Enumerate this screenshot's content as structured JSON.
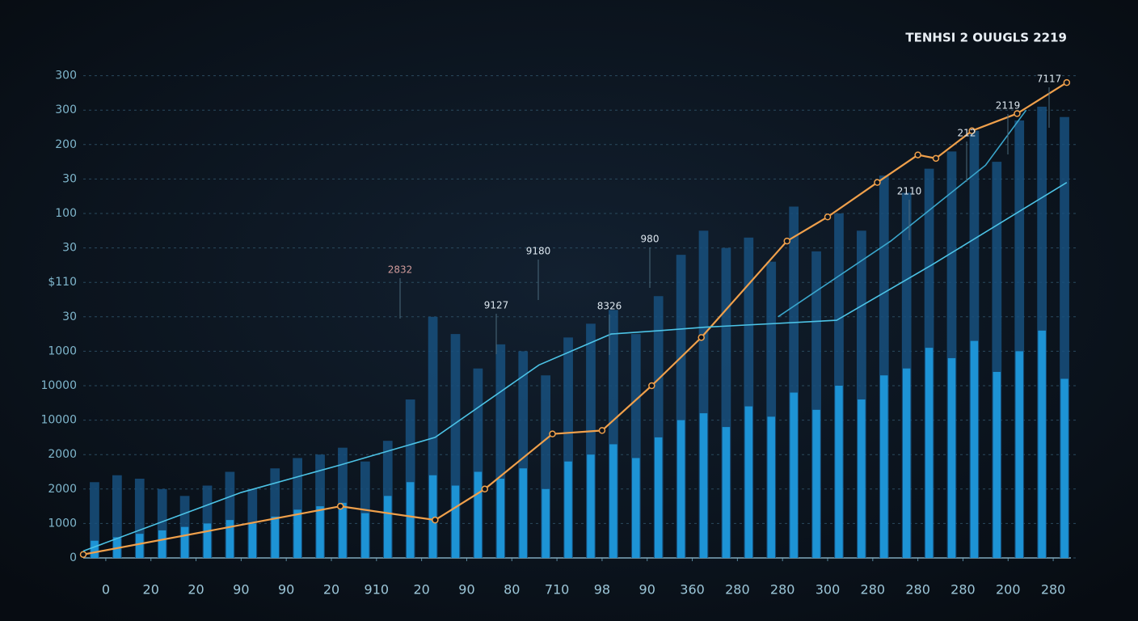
{
  "chart_data": {
    "type": "combo",
    "title": "TENHSI 2 OUUGLS 2219",
    "xlim": [
      -0.5,
      21.5
    ],
    "xticks": [
      0,
      {
        "value": 1,
        "label": "20"
      },
      {
        "value": 2,
        "label": "20"
      },
      {
        "value": 3,
        "label": "90"
      },
      {
        "value": 4,
        "label": "90"
      },
      {
        "value": 5,
        "label": "20"
      },
      {
        "value": 6,
        "label": "910"
      },
      {
        "value": 7,
        "label": "20"
      },
      {
        "value": 8,
        "label": "90"
      },
      {
        "value": 9,
        "label": "80"
      },
      {
        "value": 10,
        "label": "710"
      },
      {
        "value": 11,
        "label": "98"
      },
      {
        "value": 12,
        "label": "90"
      },
      {
        "value": 13,
        "label": "360"
      },
      {
        "value": 14,
        "label": "280"
      },
      {
        "value": 15,
        "label": "280"
      },
      {
        "value": 16,
        "label": "300"
      },
      {
        "value": 17,
        "label": "280"
      },
      {
        "value": 18,
        "label": "280"
      },
      {
        "value": 19,
        "label": "280"
      },
      {
        "value": 20,
        "label": "200"
      },
      {
        "value": 21,
        "label": "280"
      }
    ],
    "ylim": [
      0,
      14
    ],
    "yticks": [
      0,
      {
        "value": 1,
        "label": "1000"
      },
      {
        "value": 2,
        "label": "2000"
      },
      {
        "value": 3,
        "label": "2000"
      },
      {
        "value": 4,
        "label": "10000"
      },
      {
        "value": 5,
        "label": "10000"
      },
      {
        "value": 6,
        "label": "1000"
      },
      {
        "value": 7,
        "label": "30"
      },
      {
        "value": 8,
        "label": "$110"
      },
      {
        "value": 9,
        "label": "30"
      },
      {
        "value": 10,
        "label": "100"
      },
      {
        "value": 11,
        "label": "30"
      },
      {
        "value": 12,
        "label": "200"
      },
      {
        "value": 13,
        "label": "300"
      },
      {
        "value": 14,
        "label": "300"
      }
    ],
    "grid": true,
    "annotations": [
      "2832",
      "9180",
      "980",
      "9127",
      "8326",
      "2110",
      "212",
      "2119",
      "7117"
    ],
    "series": [
      {
        "type": "bar",
        "color": "#17507e",
        "x": [
          -0.25,
          0.25,
          0.75,
          1.25,
          1.75,
          2.25,
          2.75,
          3.25,
          3.75,
          4.25,
          4.75,
          5.25,
          5.75,
          6.25,
          6.75,
          7.25,
          7.75,
          8.25,
          8.75,
          9.25,
          9.75,
          10.25,
          10.75,
          11.25,
          11.75,
          12.25,
          12.75,
          13.25,
          13.75,
          14.25,
          14.75,
          15.25,
          15.75,
          16.25,
          16.75,
          17.25,
          17.75,
          18.25,
          18.75,
          19.25,
          19.75,
          20.25,
          20.75,
          21.25
        ],
        "values": [
          2.2,
          2.4,
          2.3,
          2.0,
          1.8,
          2.1,
          2.5,
          2.0,
          2.6,
          2.9,
          3.0,
          3.2,
          2.8,
          3.4,
          4.6,
          7.0,
          6.5,
          5.5,
          6.2,
          6.0,
          5.3,
          6.4,
          6.8,
          7.2,
          6.5,
          7.6,
          8.8,
          9.5,
          9.0,
          9.3,
          8.6,
          10.2,
          8.9,
          10.0,
          9.5,
          11.1,
          10.6,
          11.3,
          11.8,
          12.4,
          11.5,
          12.7,
          13.1,
          12.8
        ]
      },
      {
        "type": "bar",
        "color": "#1e9be0",
        "x": [
          -0.25,
          0.25,
          0.75,
          1.25,
          1.75,
          2.25,
          2.75,
          3.25,
          3.75,
          4.25,
          4.75,
          5.25,
          5.75,
          6.25,
          6.75,
          7.25,
          7.75,
          8.25,
          8.75,
          9.25,
          9.75,
          10.25,
          10.75,
          11.25,
          11.75,
          12.25,
          12.75,
          13.25,
          13.75,
          14.25,
          14.75,
          15.25,
          15.75,
          16.25,
          16.75,
          17.25,
          17.75,
          18.25,
          18.75,
          19.25,
          19.75,
          20.25,
          20.75,
          21.25
        ],
        "values": [
          0.5,
          0.6,
          0.7,
          0.8,
          0.9,
          1.0,
          1.1,
          1.0,
          1.2,
          1.4,
          1.5,
          1.6,
          1.3,
          1.8,
          2.2,
          2.4,
          2.1,
          2.5,
          2.3,
          2.6,
          2.0,
          2.8,
          3.0,
          3.3,
          2.9,
          3.5,
          4.0,
          4.2,
          3.8,
          4.4,
          4.1,
          4.8,
          4.3,
          5.0,
          4.6,
          5.3,
          5.5,
          6.1,
          5.8,
          6.3,
          5.4,
          6.0,
          6.6,
          5.2
        ]
      },
      {
        "type": "line",
        "color": "#f0a04b",
        "x": [
          -0.5,
          5.2,
          7.3,
          8.4,
          9.9,
          11.0,
          12.1,
          13.2,
          15.1,
          16.0,
          17.1,
          18.0,
          18.4,
          19.2,
          20.2,
          21.3
        ],
        "values": [
          0.1,
          1.5,
          1.1,
          2.0,
          3.6,
          3.7,
          5.0,
          6.4,
          9.2,
          9.9,
          10.9,
          11.7,
          11.6,
          12.4,
          12.9,
          13.8
        ]
      },
      {
        "type": "line",
        "color": "#4cc3e6",
        "x": [
          -0.5,
          3.0,
          5.2,
          7.3,
          9.6,
          11.2,
          12.3,
          13.3,
          16.2,
          18.3,
          21.3
        ],
        "values": [
          0.2,
          1.9,
          2.7,
          3.5,
          5.6,
          6.5,
          6.6,
          6.7,
          6.9,
          8.5,
          10.9
        ]
      },
      {
        "type": "line",
        "color": "#3aa6cc",
        "x": [
          14.9,
          17.4,
          19.5,
          20.4
        ],
        "values": [
          7.0,
          9.2,
          11.4,
          13.0
        ]
      }
    ]
  }
}
